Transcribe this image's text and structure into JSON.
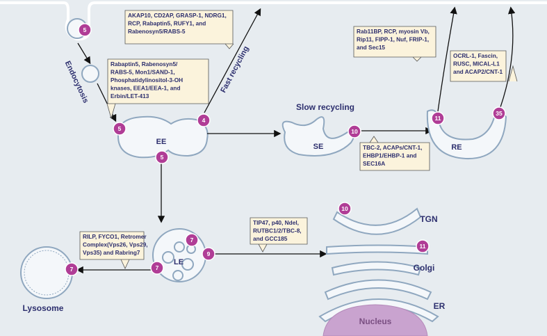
{
  "labels": {
    "endocytosis": "Endocytosis",
    "fast_recycling": "Fast recycling",
    "slow_recycling": "Slow recycling",
    "ee": "EE",
    "se": "SE",
    "re": "RE",
    "le": "LE",
    "tgn": "TGN",
    "golgi": "Golgi",
    "er": "ER",
    "nucleus": "Nucleus",
    "lysosome": "Lysosome"
  },
  "callouts": [
    {
      "lines": [
        "AKAP10, CD2AP, GRASP-1, NDRG1,",
        "RCP, Rabaptin5, RUFY1, and",
        "Rabenosyn5/RABS-5"
      ]
    },
    {
      "lines": [
        "Rabaptin5, Rabenosyn5/",
        "RABS-5, Mon1/SAND-1,",
        "Phosphatidylinositol-3-OH",
        "knases, EEA1/EEA-1, and",
        "Erbin/LET-413"
      ]
    },
    {
      "lines": [
        "Rab11BP, RCP, myosin Vb,",
        "Rip11, FIPP-1, Nuf, FRIP-1,",
        "and Sec15"
      ]
    },
    {
      "lines": [
        "OCRL-1, Fascin,",
        "RUSC, MICAL-L1",
        "and ACAP2/CNT-1"
      ]
    },
    {
      "lines": [
        "TBC-2, ACAPs/CNT-1,",
        "EHBP1/EHBP-1 and",
        "SEC16A"
      ]
    },
    {
      "lines": [
        "TIP47, p40, Ndel,",
        "RUTBC1/2/TBC-8,",
        "and GCC185"
      ]
    },
    {
      "lines": [
        "RILP, FYCO1, Retromer",
        "Complex(Vps26, Vps29,",
        "Vps35) and Rabring7"
      ]
    }
  ],
  "badges": [
    "5",
    "5",
    "4",
    "5",
    "10",
    "11",
    "35",
    "7",
    "9",
    "7",
    "7",
    "10",
    "11"
  ]
}
